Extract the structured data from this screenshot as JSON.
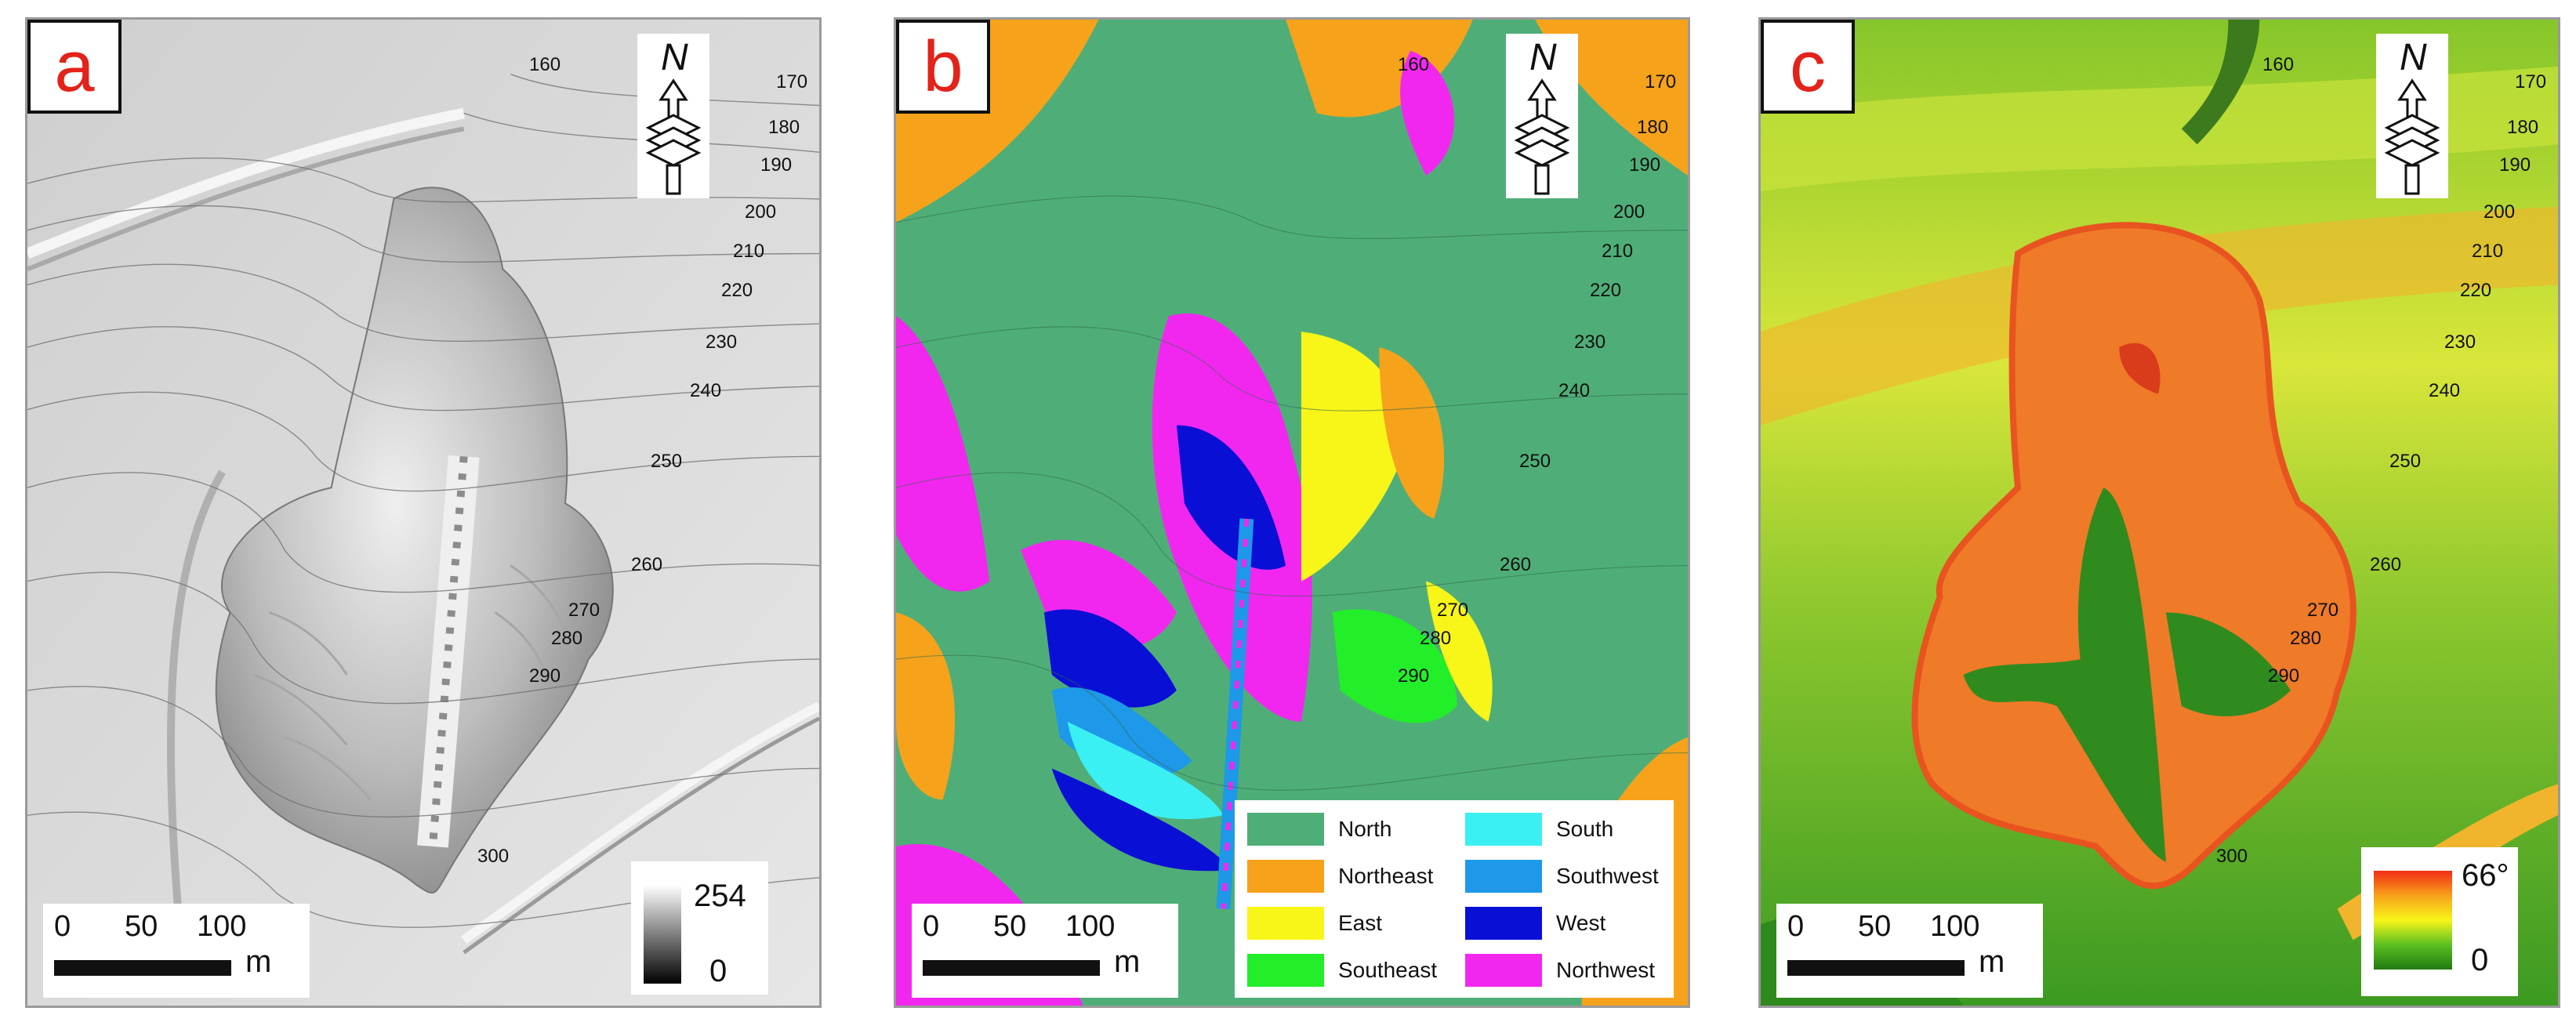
{
  "panels": {
    "a": {
      "letter": "a",
      "contours": [
        "160",
        "170",
        "180",
        "190",
        "200",
        "210",
        "220",
        "230",
        "240",
        "250",
        "260",
        "270",
        "280",
        "290",
        "300"
      ],
      "scale": {
        "t0": "0",
        "t50": "50",
        "t100": "100",
        "unit": "m"
      },
      "legend": {
        "high": "254",
        "low": "0"
      },
      "north": "N"
    },
    "b": {
      "letter": "b",
      "contours": [
        "160",
        "170",
        "180",
        "190",
        "200",
        "210",
        "220",
        "230",
        "240",
        "250",
        "260",
        "270",
        "280",
        "290",
        "300"
      ],
      "scale": {
        "t0": "0",
        "t50": "50",
        "t100": "100",
        "unit": "m"
      },
      "north": "N",
      "legend_items": [
        {
          "label": "North",
          "color": "#4fae78"
        },
        {
          "label": "Northeast",
          "color": "#f7a21b"
        },
        {
          "label": "East",
          "color": "#f8f518"
        },
        {
          "label": "Southeast",
          "color": "#22ee2a"
        },
        {
          "label": "South",
          "color": "#3af0f2"
        },
        {
          "label": "Southwest",
          "color": "#1e98e8"
        },
        {
          "label": "West",
          "color": "#0a0fd6"
        },
        {
          "label": "Northwest",
          "color": "#f227ef"
        }
      ]
    },
    "c": {
      "letter": "c",
      "contours": [
        "160",
        "170",
        "180",
        "190",
        "200",
        "210",
        "220",
        "230",
        "240",
        "250",
        "260",
        "270",
        "280",
        "290",
        "300"
      ],
      "scale": {
        "t0": "0",
        "t50": "50",
        "t100": "100",
        "unit": "m"
      },
      "legend": {
        "high": "66°",
        "low": "0"
      },
      "north": "N"
    }
  }
}
